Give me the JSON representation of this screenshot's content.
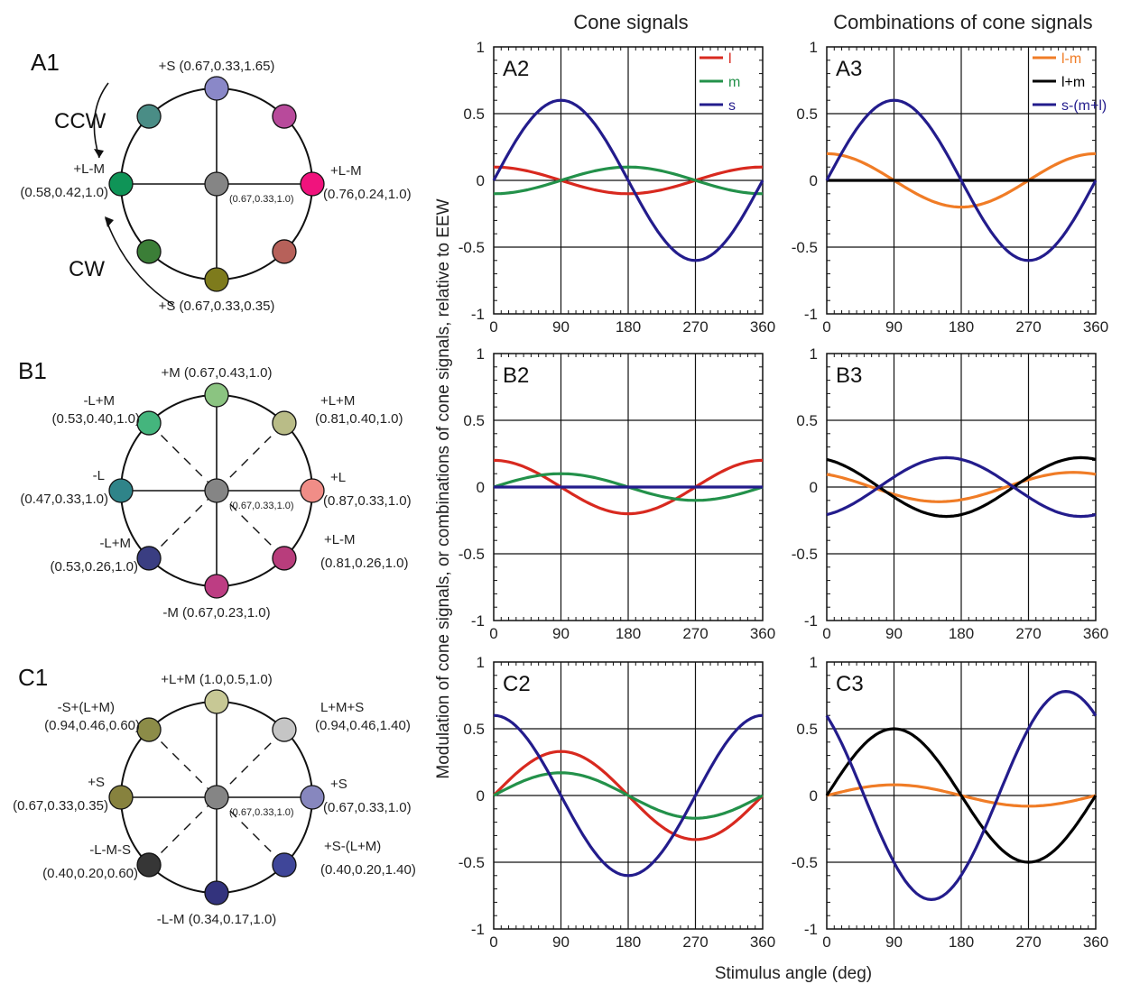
{
  "headers": {
    "cone_signals": "Cone signals",
    "combinations": "Combinations of cone signals",
    "y_axis": "Modulation of cone signals, or combinations of cone signals, relative to EEW",
    "x_axis": "Stimulus angle (deg)"
  },
  "colors": {
    "l": "#d8291f",
    "m": "#23914a",
    "s": "#231c8c",
    "lminusm": "#f07c26",
    "lplusm": "#000000",
    "s_minus_lm": "#231c8c"
  },
  "color_diagrams": [
    {
      "panel_label": "A1",
      "center": {
        "color": "#858585",
        "label": "(0.67,0.33,1.0)"
      },
      "dashed_diagonals": false,
      "arrows": {
        "ccw": "CCW",
        "cw": "CW"
      },
      "nodes": [
        {
          "angle": 0,
          "color": "#f0137d",
          "label": [
            "+L-M",
            "(0.76,0.24,1.0)"
          ]
        },
        {
          "angle": 45,
          "color": "#b84a9b",
          "label": []
        },
        {
          "angle": 90,
          "color": "#8a88c8",
          "label": [
            "+S (0.67,0.33,1.65)"
          ]
        },
        {
          "angle": 135,
          "color": "#4a8d86",
          "label": []
        },
        {
          "angle": 180,
          "color": "#0f9457",
          "label": [
            "+L-M",
            "(0.58,0.42,1.0)"
          ]
        },
        {
          "angle": 225,
          "color": "#3b7e37",
          "label": []
        },
        {
          "angle": 270,
          "color": "#7e7b1c",
          "label": [
            "+S (0.67,0.33,0.35)"
          ]
        },
        {
          "angle": 315,
          "color": "#b7615a",
          "label": []
        }
      ]
    },
    {
      "panel_label": "B1",
      "center": {
        "color": "#858585",
        "label": "(0.67,0.33,1.0)"
      },
      "dashed_diagonals": true,
      "nodes": [
        {
          "angle": 0,
          "color": "#f08d87",
          "label": [
            "+L",
            "(0.87,0.33,1.0)"
          ]
        },
        {
          "angle": 45,
          "color": "#b9bc87",
          "label": [
            "+L+M",
            "(0.81,0.40,1.0)"
          ]
        },
        {
          "angle": 90,
          "color": "#8bc481",
          "label": [
            "+M (0.67,0.43,1.0)"
          ]
        },
        {
          "angle": 135,
          "color": "#44b57d",
          "label": [
            "-L+M",
            "(0.53,0.40,1.0)"
          ]
        },
        {
          "angle": 180,
          "color": "#2f8489",
          "label": [
            "-L",
            "(0.47,0.33,1.0)"
          ]
        },
        {
          "angle": 225,
          "color": "#3a3e82",
          "label": [
            "-L+M",
            "(0.53,0.26,1.0)"
          ]
        },
        {
          "angle": 270,
          "color": "#bd3d83",
          "label": [
            "-M (0.67,0.23,1.0)"
          ]
        },
        {
          "angle": 315,
          "color": "#b83d7c",
          "label": [
            "+L-M",
            "(0.81,0.26,1.0)"
          ]
        }
      ]
    },
    {
      "panel_label": "C1",
      "center": {
        "color": "#858585",
        "label": "(0.67,0.33,1.0)"
      },
      "dashed_diagonals": true,
      "nodes": [
        {
          "angle": 0,
          "color": "#8787be",
          "label": [
            "+S",
            "(0.67,0.33,1.0)"
          ]
        },
        {
          "angle": 45,
          "color": "#c5c5c5",
          "label": [
            "L+M+S",
            "(0.94,0.46,1.40)"
          ]
        },
        {
          "angle": 90,
          "color": "#c7c895",
          "label": [
            "+L+M (1.0,0.5,1.0)"
          ]
        },
        {
          "angle": 135,
          "color": "#8c8c48",
          "label": [
            "-S+(L+M)",
            "(0.94,0.46,0.60)"
          ]
        },
        {
          "angle": 180,
          "color": "#87823e",
          "label": [
            "+S",
            "(0.67,0.33,0.35)"
          ]
        },
        {
          "angle": 225,
          "color": "#363636",
          "label": [
            "-L-M-S",
            "(0.40,0.20,0.60)"
          ]
        },
        {
          "angle": 270,
          "color": "#33337d",
          "label": [
            "-L-M (0.34,0.17,1.0)"
          ]
        },
        {
          "angle": 315,
          "color": "#3f4699",
          "label": [
            "+S-(L+M)",
            "(0.40,0.20,1.40)"
          ]
        }
      ]
    }
  ],
  "chart_data": [
    {
      "panel_label": "A2",
      "type": "line",
      "xlim": [
        0,
        360
      ],
      "ylim": [
        -1,
        1
      ],
      "x_ticks": [
        0,
        90,
        180,
        270,
        360
      ],
      "y_ticks": [
        1,
        0.5,
        0,
        -0.5,
        -1
      ],
      "tick_labels": {
        "x": [
          "0",
          "90",
          "180",
          "270",
          "360"
        ],
        "y": [
          "1",
          "0.5",
          "0",
          "-0.5",
          "-1"
        ]
      },
      "grid": true,
      "legend": "top-right",
      "series": [
        {
          "name": "l",
          "color": "#d8291f",
          "amplitude": 0.1,
          "phase_deg": 90,
          "offset": 0
        },
        {
          "name": "m",
          "color": "#23914a",
          "amplitude": 0.1,
          "phase_deg": -90,
          "offset": 0
        },
        {
          "name": "s",
          "color": "#231c8c",
          "amplitude": 0.6,
          "phase_deg": 0,
          "offset": 0
        }
      ]
    },
    {
      "panel_label": "B2",
      "type": "line",
      "xlim": [
        0,
        360
      ],
      "ylim": [
        -1,
        1
      ],
      "x_ticks": [
        0,
        90,
        180,
        270,
        360
      ],
      "y_ticks": [
        1,
        0.5,
        0,
        -0.5,
        -1
      ],
      "tick_labels": {
        "x": [
          "0",
          "90",
          "180",
          "270",
          "360"
        ],
        "y": [
          "1",
          "0.5",
          "0",
          "-0.5",
          "-1"
        ]
      },
      "grid": true,
      "series": [
        {
          "color": "#d8291f",
          "amplitude": 0.2,
          "phase_deg": 90,
          "offset": 0
        },
        {
          "color": "#23914a",
          "amplitude": 0.1,
          "phase_deg": 0,
          "offset": 0
        },
        {
          "color": "#231c8c",
          "amplitude": 0,
          "phase_deg": 0,
          "offset": 0
        }
      ]
    },
    {
      "panel_label": "C2",
      "type": "line",
      "xlim": [
        0,
        360
      ],
      "ylim": [
        -1,
        1
      ],
      "x_ticks": [
        0,
        90,
        180,
        270,
        360
      ],
      "y_ticks": [
        1,
        0.5,
        0,
        -0.5,
        -1
      ],
      "tick_labels": {
        "x": [
          "0",
          "90",
          "180",
          "270",
          "360"
        ],
        "y": [
          "1",
          "0.5",
          "0",
          "-0.5",
          "-1"
        ]
      },
      "grid": true,
      "series": [
        {
          "color": "#d8291f",
          "amplitude": 0.33,
          "phase_deg": 0,
          "offset": 0
        },
        {
          "color": "#23914a",
          "amplitude": 0.17,
          "phase_deg": 0,
          "offset": 0
        },
        {
          "color": "#231c8c",
          "amplitude": 0.6,
          "phase_deg": 90,
          "offset": 0
        }
      ]
    },
    {
      "panel_label": "A3",
      "type": "line",
      "xlim": [
        0,
        360
      ],
      "ylim": [
        -1,
        1
      ],
      "x_ticks": [
        0,
        90,
        180,
        270,
        360
      ],
      "y_ticks": [
        1,
        0.5,
        0,
        -0.5,
        -1
      ],
      "tick_labels": {
        "x": [
          "0",
          "90",
          "180",
          "270",
          "360"
        ],
        "y": [
          "1",
          "0.5",
          "0",
          "-0.5",
          "-1"
        ]
      },
      "grid": true,
      "legend": "top-right",
      "series": [
        {
          "name": "l-m",
          "color": "#f07c26",
          "amplitude": 0.2,
          "phase_deg": 90,
          "offset": 0
        },
        {
          "name": "l+m",
          "color": "#000000",
          "amplitude": 0,
          "phase_deg": 0,
          "offset": 0
        },
        {
          "name": "s-(m+l)",
          "color": "#231c8c",
          "amplitude": 0.6,
          "phase_deg": 0,
          "offset": 0
        }
      ]
    },
    {
      "panel_label": "B3",
      "type": "line",
      "xlim": [
        0,
        360
      ],
      "ylim": [
        -1,
        1
      ],
      "x_ticks": [
        0,
        90,
        180,
        270,
        360
      ],
      "y_ticks": [
        1,
        0.5,
        0,
        -0.5,
        -1
      ],
      "tick_labels": {
        "x": [
          "0",
          "90",
          "180",
          "270",
          "360"
        ],
        "y": [
          "1",
          "0.5",
          "0",
          "-0.5",
          "-1"
        ]
      },
      "grid": true,
      "series": [
        {
          "color": "#f07c26",
          "amplitude": 0.11,
          "phase_deg": 120,
          "offset": 0
        },
        {
          "color": "#000000",
          "amplitude": 0.22,
          "phase_deg": 110,
          "offset": 0
        },
        {
          "color": "#231c8c",
          "amplitude": 0.22,
          "phase_deg": -70,
          "offset": 0
        }
      ]
    },
    {
      "panel_label": "C3",
      "type": "line",
      "xlim": [
        0,
        360
      ],
      "ylim": [
        -1,
        1
      ],
      "x_ticks": [
        0,
        90,
        180,
        270,
        360
      ],
      "y_ticks": [
        1,
        0.5,
        0,
        -0.5,
        -1
      ],
      "tick_labels": {
        "x": [
          "0",
          "90",
          "180",
          "270",
          "360"
        ],
        "y": [
          "1",
          "0.5",
          "0",
          "-0.5",
          "-1"
        ]
      },
      "grid": true,
      "series": [
        {
          "color": "#f07c26",
          "amplitude": 0.08,
          "phase_deg": 0,
          "offset": 0
        },
        {
          "color": "#000000",
          "amplitude": 0.5,
          "phase_deg": 0,
          "offset": 0
        },
        {
          "color": "#231c8c",
          "amplitude": 0.78,
          "phase_deg": 130,
          "offset": 0
        }
      ]
    }
  ]
}
